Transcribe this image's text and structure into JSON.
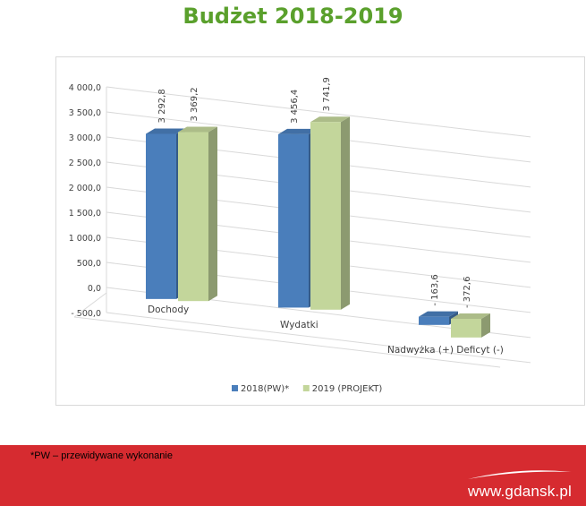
{
  "page": {
    "title": "Budżet 2018-2019",
    "footnote": "*PW – przewidywane wykonanie",
    "site": "www.gdansk.pl"
  },
  "chart_data": {
    "type": "bar",
    "title": "",
    "xlabel": "",
    "ylabel": "",
    "categories": [
      "Dochody",
      "Wydatki",
      "Nadwyżka (+) Deficyt (-)"
    ],
    "series": [
      {
        "name": "2018(PW)*",
        "values": [
          3292.8,
          3456.4,
          -163.6
        ],
        "labels": [
          "3 292,8",
          "3 456,4",
          "- 163,6"
        ],
        "color": "#4a7ebb"
      },
      {
        "name": "2019 (PROJEKT)",
        "values": [
          3369.2,
          3741.9,
          -372.6
        ],
        "labels": [
          "3 369,2",
          "3 741,9",
          "- 372,6"
        ],
        "color": "#c3d69b"
      }
    ],
    "yticks": [
      -500,
      0,
      500,
      1000,
      1500,
      2000,
      2500,
      3000,
      3500,
      4000
    ],
    "ytick_labels": [
      "- 500,0",
      "0,0",
      "500,0",
      "1 000,0",
      "1 500,0",
      "2 000,0",
      "2 500,0",
      "3 000,0",
      "3 500,0",
      "4 000,0"
    ],
    "ylim": [
      -500,
      4000
    ],
    "grid": true,
    "legend_position": "bottom",
    "style": "3d-bar"
  }
}
